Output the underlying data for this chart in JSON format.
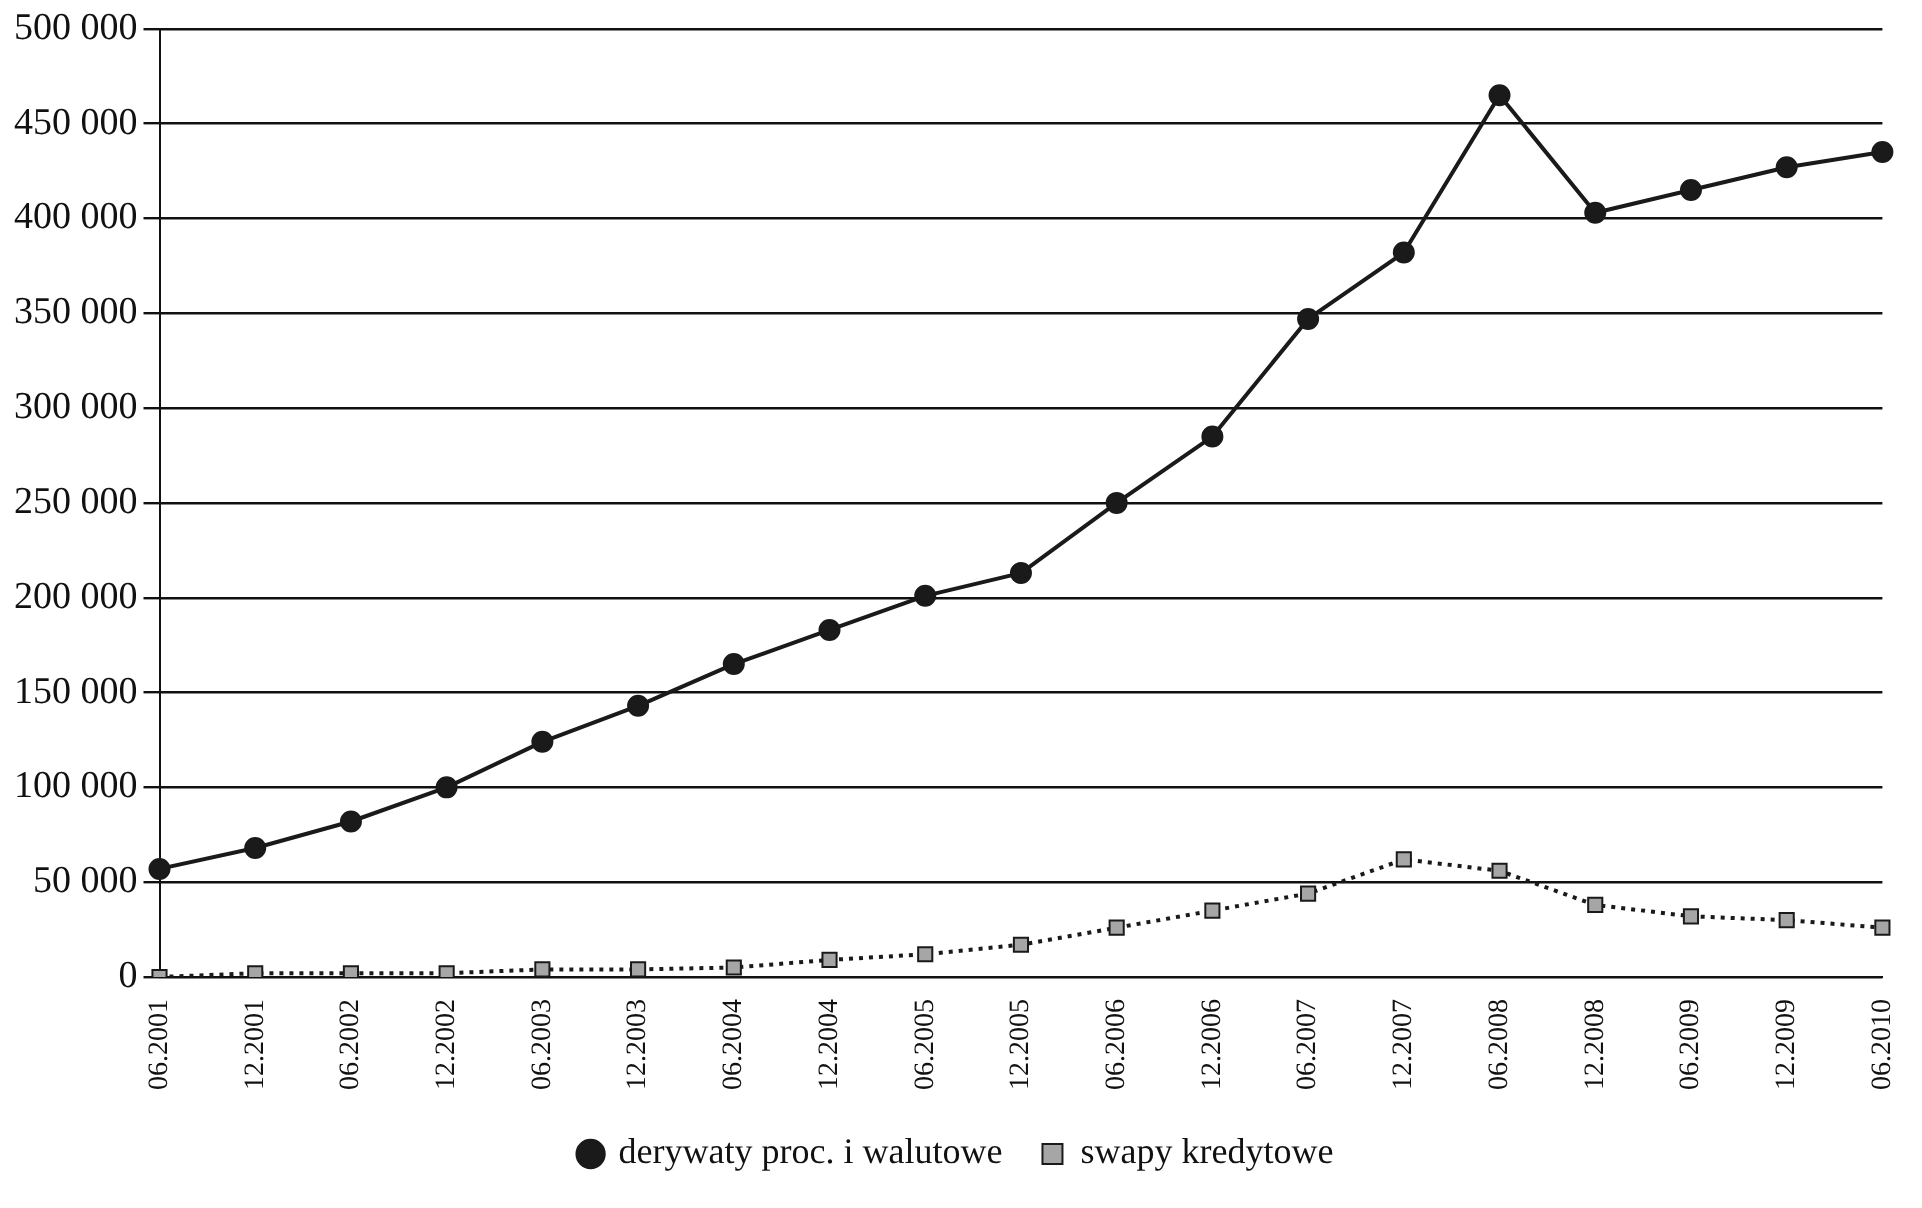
{
  "chart_data": {
    "type": "line",
    "categories": [
      "06.2001",
      "12.2001",
      "06.2002",
      "12.2002",
      "06.2003",
      "12.2003",
      "06.2004",
      "12.2004",
      "06.2005",
      "12.2005",
      "06.2006",
      "12.2006",
      "06.2007",
      "12.2007",
      "06.2008",
      "12.2008",
      "06.2009",
      "12.2009",
      "06.2010"
    ],
    "series": [
      {
        "name": "derywaty proc. i walutowe",
        "color": "#1a1a1a",
        "marker": "circle",
        "line_style": "solid",
        "values": [
          57000,
          68000,
          82000,
          100000,
          124000,
          143000,
          165000,
          183000,
          201000,
          213000,
          250000,
          285000,
          347000,
          382000,
          465000,
          403000,
          415000,
          427000,
          435000
        ]
      },
      {
        "name": "swapy kredytowe",
        "color": "#a6a6a6",
        "marker": "square",
        "line_style": "dotted",
        "values": [
          0,
          2000,
          2000,
          2000,
          4000,
          4000,
          5000,
          9000,
          12000,
          17000,
          26000,
          35000,
          44000,
          62000,
          56000,
          38000,
          32000,
          30000,
          26000
        ]
      }
    ],
    "ylim": [
      0,
      500000
    ],
    "yticks": [
      {
        "value": 0,
        "label": "0"
      },
      {
        "value": 50000,
        "label": "50 000"
      },
      {
        "value": 100000,
        "label": "100 000"
      },
      {
        "value": 150000,
        "label": "150 000"
      },
      {
        "value": 200000,
        "label": "200 000"
      },
      {
        "value": 250000,
        "label": "250 000"
      },
      {
        "value": 300000,
        "label": "300 000"
      },
      {
        "value": 350000,
        "label": "350 000"
      },
      {
        "value": 400000,
        "label": "400 000"
      },
      {
        "value": 450000,
        "label": "450 000"
      },
      {
        "value": 500000,
        "label": "500 000"
      }
    ],
    "grid": "y",
    "legend": "bottom"
  }
}
